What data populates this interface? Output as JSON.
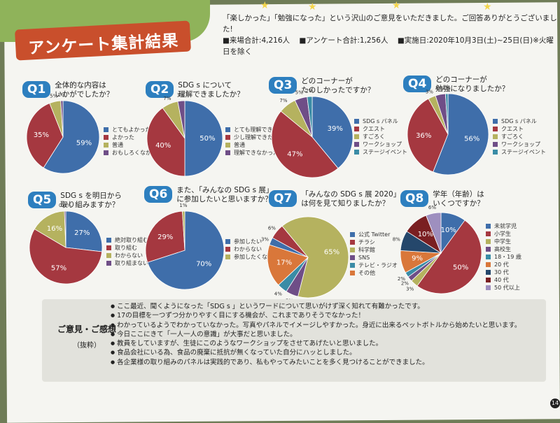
{
  "banner": {
    "title": "アンケート集計結果"
  },
  "intro": {
    "line1": "「楽しかった」「勉強になった」という沢山のご意見をいただきました。ご回答ありがとうございました!",
    "visitors": "■来場合計:4,216人",
    "respondents": "■アンケート合計:1,256人",
    "dates": "■実施日:2020年10月3日(土)~25日(日)※火曜日を除く"
  },
  "colors": {
    "blue": "#3f6eaa",
    "red": "#a53840",
    "olive": "#b5b25f",
    "purple": "#6f4e87",
    "teal": "#3a8ca6",
    "orange": "#d9773a",
    "navy": "#25476b",
    "darkred": "#7a1f22",
    "lavender": "#9e8fbf",
    "gray": "#b7b7b0",
    "slate": "#5e7f9a"
  },
  "chart_data": [
    {
      "id": "Q1",
      "type": "pie",
      "badge": "Q1",
      "question": "全体的な内容は\nいかがでしたか？",
      "categories": [
        "とてもよかった",
        "よかった",
        "普通",
        "おもしろくなかった"
      ],
      "values": [
        59,
        35,
        5,
        1
      ],
      "labels": [
        "59%",
        "35%",
        "5%",
        "1%"
      ]
    },
    {
      "id": "Q2",
      "type": "pie",
      "badge": "Q2",
      "question": "SDG s について\n理解できましたか？",
      "categories": [
        "とても理解できた",
        "少し理解できた",
        "普通",
        "理解できなかった"
      ],
      "values": [
        50,
        40,
        7,
        3
      ],
      "labels": [
        "50%",
        "40%",
        "7%",
        "3%"
      ]
    },
    {
      "id": "Q3",
      "type": "pie",
      "badge": "Q3",
      "question": "どのコーナーが\nたのしかったですか？",
      "categories": [
        "SDG s パネル",
        "クエスト",
        "すごろく",
        "ワークショップ",
        "ステージイベント"
      ],
      "values": [
        39,
        47,
        7,
        5,
        2
      ],
      "labels": [
        "39%",
        "47%",
        "7%",
        "5%",
        "2%"
      ]
    },
    {
      "id": "Q4",
      "type": "pie",
      "badge": "Q4",
      "question": "どのコーナーが\n勉強になりましたか？",
      "categories": [
        "SDG s パネル",
        "クエスト",
        "すごろく",
        "ワークショップ",
        "ステージイベント"
      ],
      "values": [
        56,
        36,
        3,
        4,
        1
      ],
      "labels": [
        "56%",
        "36%",
        "3%",
        "4%",
        "1%"
      ]
    },
    {
      "id": "Q5",
      "type": "pie",
      "badge": "Q5",
      "question": "SDG s を明日から\n取り組みますか？",
      "categories": [
        "絶対取り組む",
        "取り組む",
        "わからない",
        "取り組まない"
      ],
      "values": [
        27,
        57,
        16,
        0.6
      ],
      "labels": [
        "27%",
        "57%",
        "16%",
        "0.6%"
      ]
    },
    {
      "id": "Q6",
      "type": "pie",
      "badge": "Q6",
      "question": "また、「みんなの SDG s 展」\nに参加したいと思いますか？",
      "categories": [
        "参加したい",
        "わからない",
        "参加したくない"
      ],
      "values": [
        70,
        29,
        1
      ],
      "labels": [
        "70%",
        "29%",
        "1%"
      ]
    },
    {
      "id": "Q7",
      "type": "pie",
      "badge": "Q7",
      "question": "「みんなの SDG s 展 2020」\nは何を見て知りましたか？",
      "categories": [
        "公式 Twitter",
        "チラシ",
        "科学館",
        "SNS",
        "テレビ・ラジオ",
        "その他"
      ],
      "values": [
        3,
        6,
        65,
        5,
        4,
        17
      ],
      "labels": [
        "3%",
        "6%",
        "65%",
        "5%",
        "4%",
        "17%"
      ]
    },
    {
      "id": "Q8",
      "type": "pie",
      "badge": "Q8",
      "question": "学年（年齢）は\nいくつですか？",
      "categories": [
        "未就学児",
        "小学生",
        "中学生",
        "高校生",
        "18・19 歳",
        "20 代",
        "30 代",
        "40 代",
        "50 代以上"
      ],
      "values": [
        10,
        50,
        3,
        2,
        2,
        9,
        8,
        10,
        6
      ],
      "labels": [
        "10%",
        "50%",
        "3%",
        "2%",
        "2%",
        "9%",
        "8%",
        "10%",
        "6%"
      ]
    }
  ],
  "comments": {
    "title": "ご意見・ご感想",
    "subtitle": "（抜粋）",
    "items": [
      "ここ最近、聞くようになった「SDG s 」というワードについて思いがけず深く知れて有難かったです。",
      "17の目標を一つずつ分かりやすく目にする機会が、これまでありそうでなかった！",
      "わかっているようでわかっていなかった。写真やパネルでイメージしやすかった。身近に出来るペットボトルから始めたいと思います。",
      "今日ここにきて「一人一人の意識」が大事だと思いました。",
      "教員をしていますが、生徒にこのようなワークショップをさせてあげたいと思いました。",
      "食品会社にいる為、食品の廃棄に抵抗が無くなっていた自分にハッとしました。",
      "各企業様の取り組みのパネルは実践的であり、私もやってみたいことを多く見つけることができました。"
    ]
  },
  "page_number": "14"
}
